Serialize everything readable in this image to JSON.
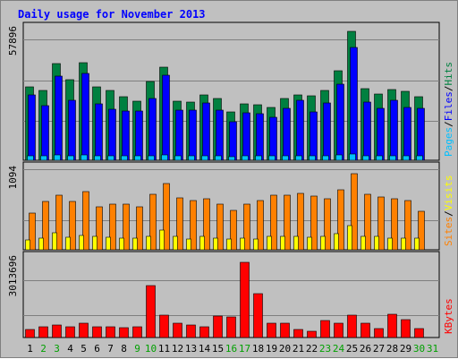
{
  "chart_data": {
    "type": "bar",
    "title": "Daily usage for November 2013",
    "categories": [
      "1",
      "2",
      "3",
      "4",
      "5",
      "6",
      "7",
      "8",
      "9",
      "10",
      "11",
      "12",
      "13",
      "14",
      "15",
      "16",
      "17",
      "18",
      "19",
      "20",
      "21",
      "22",
      "23",
      "24",
      "25",
      "26",
      "27",
      "28",
      "29",
      "30",
      "31"
    ],
    "weekend_days": [
      "2",
      "3",
      "9",
      "10",
      "16",
      "17",
      "23",
      "24",
      "30",
      "31"
    ],
    "panels": [
      {
        "name": "pages-files-hits",
        "ymax_label": "57896",
        "ymax": 57896,
        "axis_labels": [
          "Pages",
          "Files",
          "Hits"
        ],
        "series": [
          {
            "name": "Hits",
            "color": "#008040",
            "values": [
              31500,
              30000,
              41800,
              34600,
              42000,
              31600,
              30000,
              27400,
              25400,
              33800,
              40000,
              25400,
              24900,
              28200,
              26500,
              21000,
              24400,
              23800,
              22600,
              26700,
              28300,
              27900,
              30000,
              38700,
              55400,
              31000,
              28600,
              30600,
              29600,
              27400,
              0
            ]
          },
          {
            "name": "Files",
            "color": "#0000ff",
            "values": [
              28200,
              23600,
              36100,
              25700,
              37600,
              24500,
              21900,
              21300,
              21300,
              26700,
              36600,
              21500,
              21500,
              24800,
              21700,
              16700,
              20400,
              19900,
              18400,
              22200,
              25800,
              20800,
              24600,
              33000,
              48800,
              24900,
              22200,
              25800,
              22700,
              22300,
              0
            ]
          },
          {
            "name": "Pages",
            "color": "#00c0ff",
            "values": [
              2100,
              1900,
              2200,
              2000,
              2300,
              2000,
              1900,
              1800,
              1800,
              2100,
              2300,
              1900,
              1800,
              2000,
              1900,
              1700,
              1800,
              1800,
              1800,
              1900,
              2100,
              1900,
              2000,
              2300,
              2800,
              2100,
              1900,
              2000,
              1900,
              1900,
              0
            ]
          }
        ]
      },
      {
        "name": "visits-sites",
        "ymax_label": "1094",
        "ymax": 1094,
        "axis_labels": [
          "Sites",
          "Visits"
        ],
        "series": [
          {
            "name": "Sites",
            "color": "#ff8000",
            "values": [
              482,
              629,
              707,
              627,
              756,
              557,
              593,
              590,
              559,
              726,
              861,
              680,
              639,
              665,
              597,
              516,
              597,
              640,
              715,
              712,
              730,
              693,
              666,
              776,
              992,
              719,
              684,
              666,
              640,
              503,
              0
            ]
          },
          {
            "name": "Visits",
            "color": "#ffff00",
            "values": [
              130,
              154,
              216,
              164,
              190,
              174,
              163,
              153,
              153,
              180,
              252,
              169,
              145,
              176,
              153,
              144,
              151,
              142,
              175,
              180,
              169,
              159,
              180,
              205,
              310,
              179,
              171,
              157,
              153,
              146,
              0
            ]
          }
        ]
      },
      {
        "name": "kbytes",
        "ymax_label": "3013696",
        "ymax": 3013696,
        "axis_labels": [
          "KBytes"
        ],
        "series": [
          {
            "name": "KBytes",
            "color": "#ff0000",
            "values": [
              305000,
              386000,
              445000,
              378000,
              510000,
              380000,
              378000,
              348000,
              405000,
              1915000,
              807000,
              533000,
              457000,
              408000,
              792000,
              750000,
              2764000,
              1620000,
              535000,
              534000,
              310000,
              219000,
              610000,
              517000,
              816000,
              510000,
              320000,
              838000,
              642000,
              336000,
              0
            ]
          }
        ]
      }
    ]
  }
}
